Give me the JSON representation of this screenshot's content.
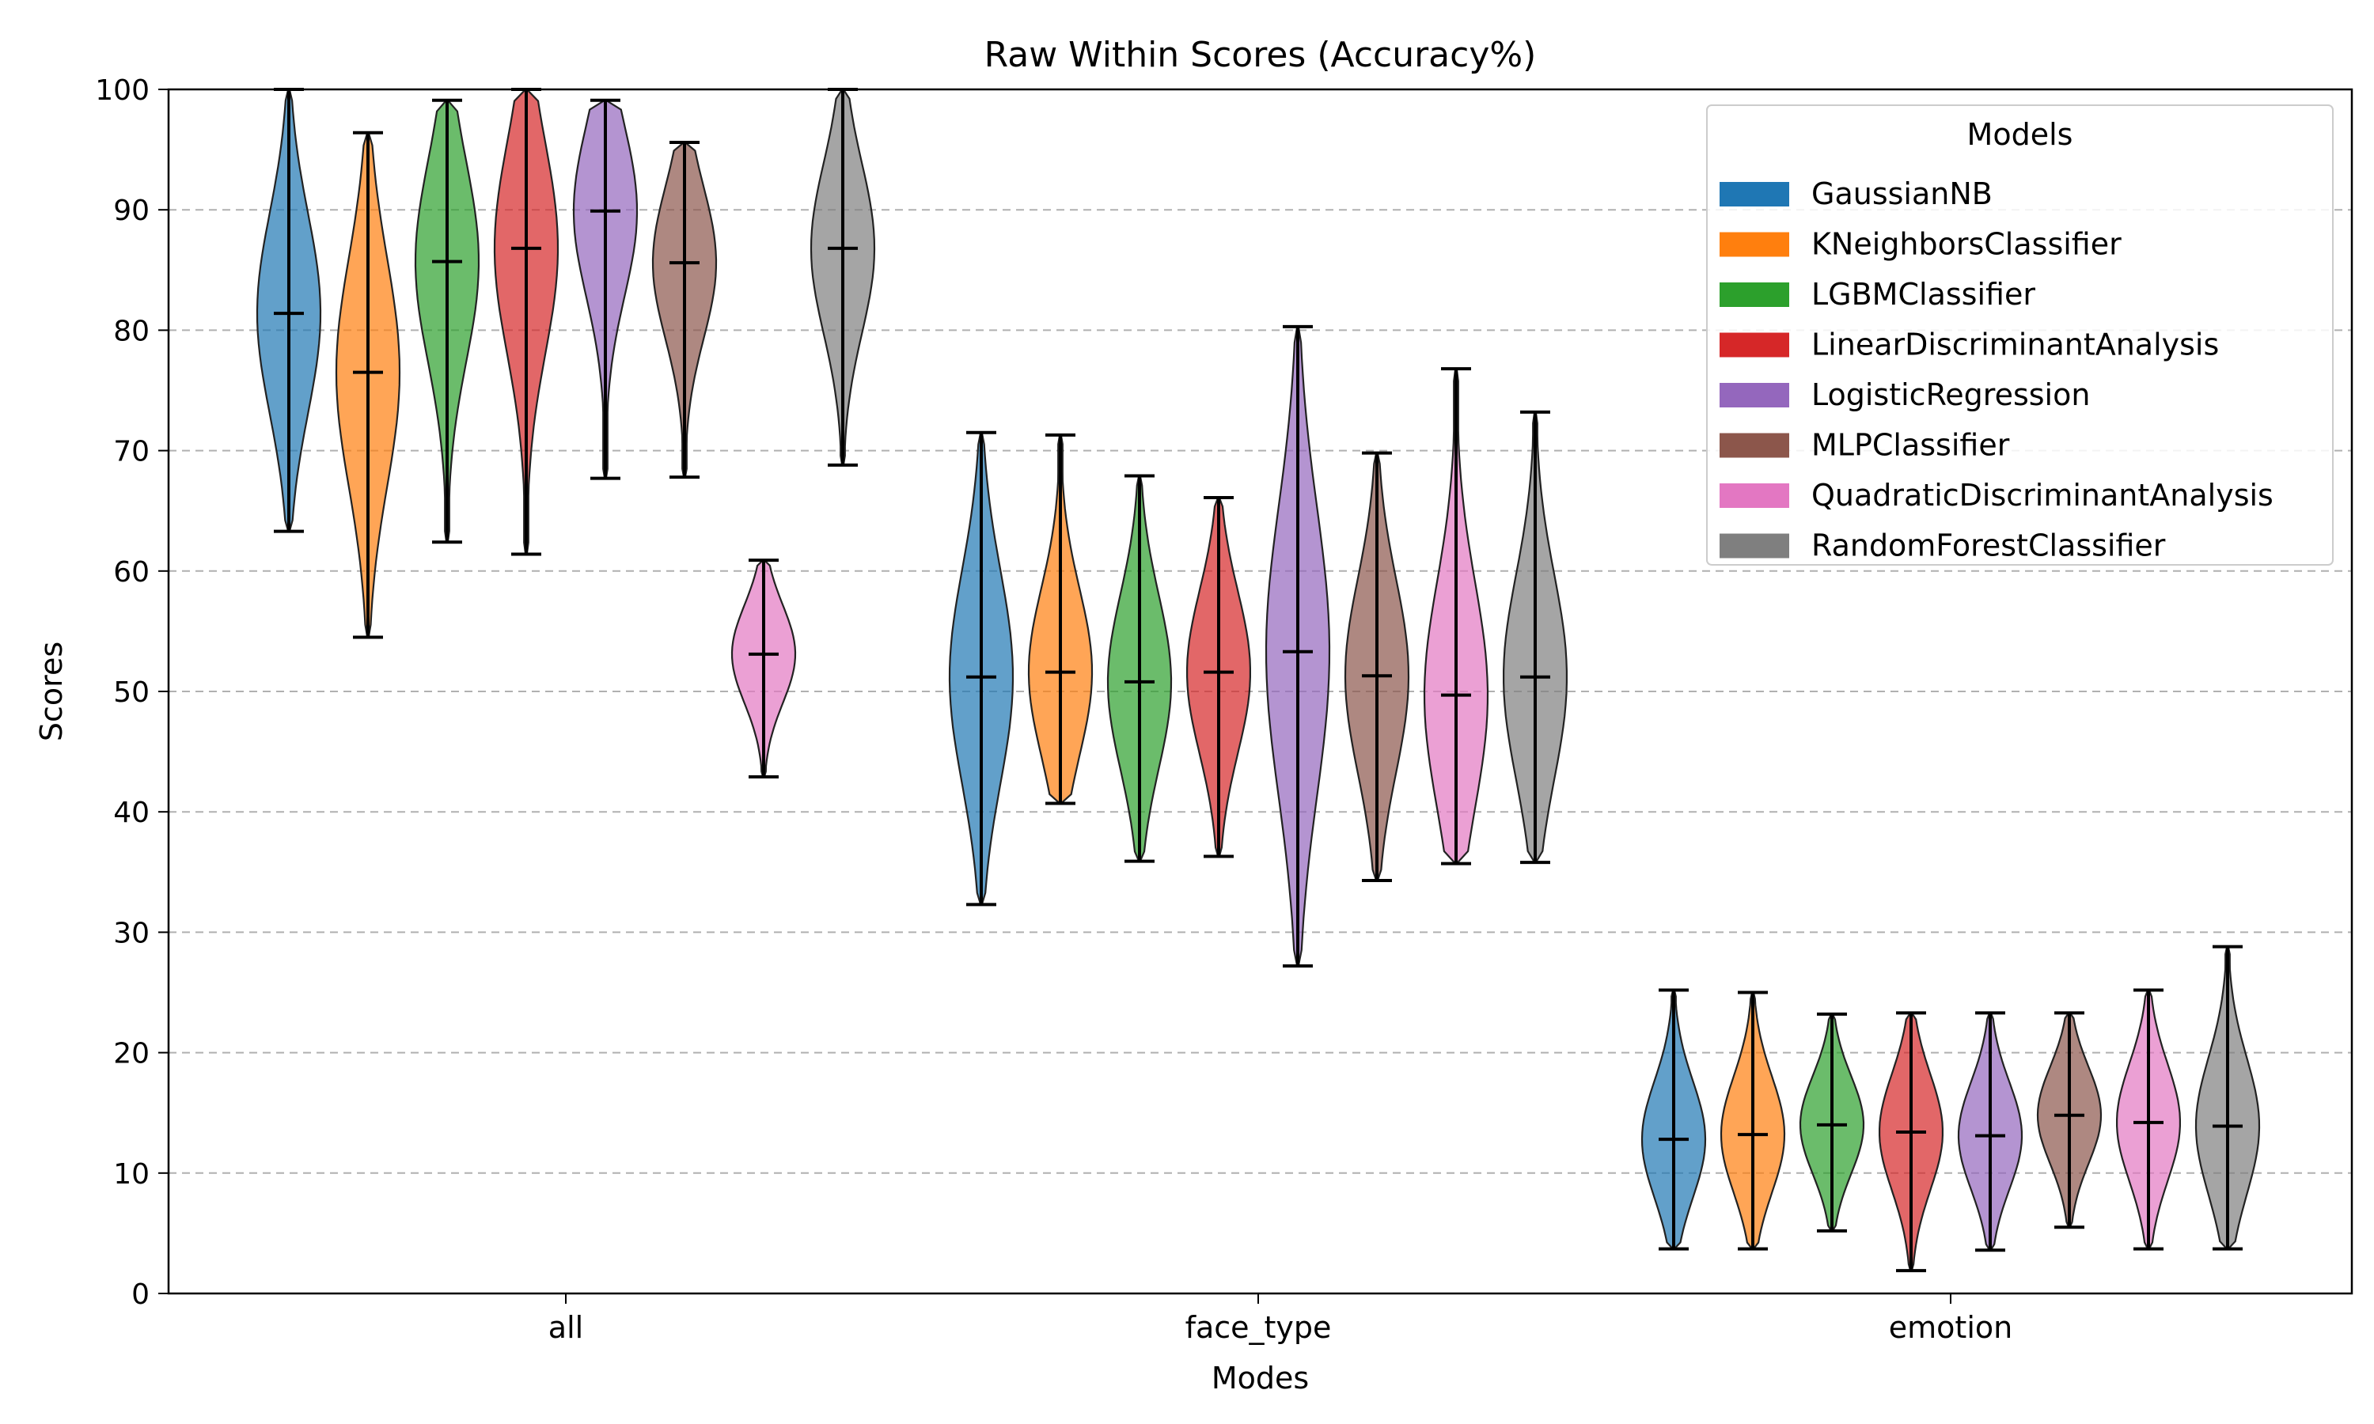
{
  "chart_data": {
    "type": "violin",
    "title": "Raw Within Scores (Accuracy%)",
    "xlabel": "Modes",
    "ylabel": "Scores",
    "ylim": [
      0,
      100
    ],
    "yticks": [
      0,
      10,
      20,
      30,
      40,
      50,
      60,
      70,
      80,
      90,
      100
    ],
    "categories": [
      "all",
      "face_type",
      "emotion"
    ],
    "grid": {
      "axis": "y",
      "style": "dashed"
    },
    "legend": {
      "title": "Models",
      "placement": "upper-right"
    },
    "series": [
      {
        "name": "GaussianNB",
        "color": "#1f77b4",
        "stats": [
          {
            "min": 63.3,
            "mean": 81.4,
            "max": 100.0
          },
          {
            "min": 32.3,
            "mean": 51.2,
            "max": 71.5
          },
          {
            "min": 3.7,
            "mean": 12.8,
            "max": 25.2
          }
        ]
      },
      {
        "name": "KNeighborsClassifier",
        "color": "#ff7f0e",
        "stats": [
          {
            "min": 54.5,
            "mean": 76.5,
            "max": 96.4
          },
          {
            "min": 40.7,
            "mean": 51.6,
            "max": 71.3
          },
          {
            "min": 3.7,
            "mean": 13.2,
            "max": 25.0
          }
        ]
      },
      {
        "name": "LGBMClassifier",
        "color": "#2ca02c",
        "stats": [
          {
            "min": 62.4,
            "mean": 85.7,
            "max": 99.1
          },
          {
            "min": 35.9,
            "mean": 50.8,
            "max": 67.9
          },
          {
            "min": 5.2,
            "mean": 14.0,
            "max": 23.2
          }
        ]
      },
      {
        "name": "LinearDiscriminantAnalysis",
        "color": "#d62728",
        "stats": [
          {
            "min": 61.4,
            "mean": 86.8,
            "max": 100.0
          },
          {
            "min": 36.3,
            "mean": 51.6,
            "max": 66.1
          },
          {
            "min": 1.9,
            "mean": 13.4,
            "max": 23.3
          }
        ]
      },
      {
        "name": "LogisticRegression",
        "color": "#9467bd",
        "stats": [
          {
            "min": 67.7,
            "mean": 89.9,
            "max": 99.1
          },
          {
            "min": 27.2,
            "mean": 53.3,
            "max": 80.3
          },
          {
            "min": 3.6,
            "mean": 13.1,
            "max": 23.3
          }
        ]
      },
      {
        "name": "MLPClassifier",
        "color": "#8c564b",
        "stats": [
          {
            "min": 67.8,
            "mean": 85.6,
            "max": 95.6
          },
          {
            "min": 34.3,
            "mean": 51.3,
            "max": 69.8
          },
          {
            "min": 5.5,
            "mean": 14.8,
            "max": 23.3
          }
        ]
      },
      {
        "name": "QuadraticDiscriminantAnalysis",
        "color": "#e377c2",
        "stats": [
          {
            "min": 42.9,
            "mean": 53.1,
            "max": 60.9
          },
          {
            "min": 35.7,
            "mean": 49.7,
            "max": 76.8
          },
          {
            "min": 3.7,
            "mean": 14.2,
            "max": 25.2
          }
        ]
      },
      {
        "name": "RandomForestClassifier",
        "color": "#7f7f7f",
        "stats": [
          {
            "min": 68.8,
            "mean": 86.8,
            "max": 100.0
          },
          {
            "min": 35.8,
            "mean": 51.2,
            "max": 73.2
          },
          {
            "min": 3.7,
            "mean": 13.9,
            "max": 28.8
          }
        ]
      }
    ]
  }
}
